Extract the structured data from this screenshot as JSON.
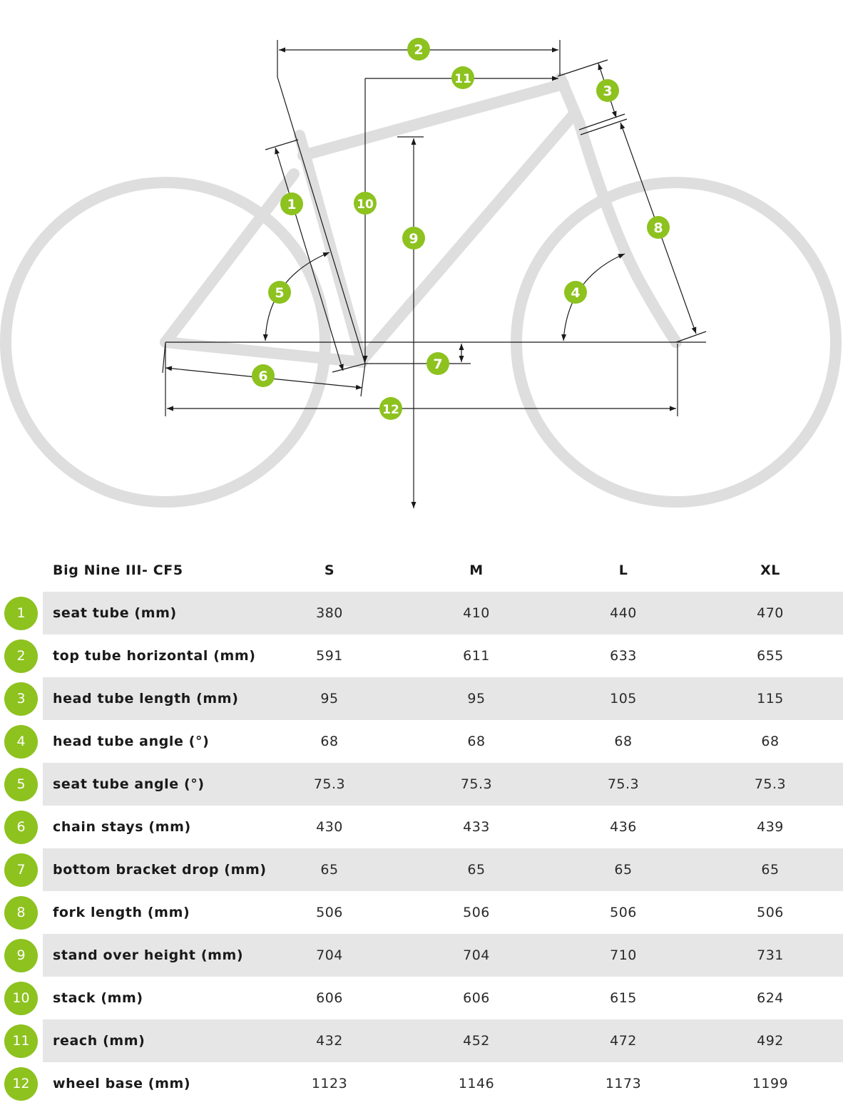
{
  "diagram": {
    "badges": [
      {
        "n": "1"
      },
      {
        "n": "2"
      },
      {
        "n": "3"
      },
      {
        "n": "4"
      },
      {
        "n": "5"
      },
      {
        "n": "6"
      },
      {
        "n": "7"
      },
      {
        "n": "8"
      },
      {
        "n": "9"
      },
      {
        "n": "10"
      },
      {
        "n": "11"
      },
      {
        "n": "12"
      }
    ]
  },
  "table": {
    "model": "Big Nine III- CF5",
    "sizes": [
      "S",
      "M",
      "L",
      "XL"
    ],
    "rows": [
      {
        "num": "1",
        "label": "seat tube (mm)",
        "values": [
          "380",
          "410",
          "440",
          "470"
        ]
      },
      {
        "num": "2",
        "label": "top tube horizontal (mm)",
        "values": [
          "591",
          "611",
          "633",
          "655"
        ]
      },
      {
        "num": "3",
        "label": "head tube length (mm)",
        "values": [
          "95",
          "95",
          "105",
          "115"
        ]
      },
      {
        "num": "4",
        "label": "head tube angle (°)",
        "values": [
          "68",
          "68",
          "68",
          "68"
        ]
      },
      {
        "num": "5",
        "label": "seat tube angle (°)",
        "values": [
          "75.3",
          "75.3",
          "75.3",
          "75.3"
        ]
      },
      {
        "num": "6",
        "label": "chain stays (mm)",
        "values": [
          "430",
          "433",
          "436",
          "439"
        ]
      },
      {
        "num": "7",
        "label": "bottom bracket drop (mm)",
        "values": [
          "65",
          "65",
          "65",
          "65"
        ]
      },
      {
        "num": "8",
        "label": "fork length (mm)",
        "values": [
          "506",
          "506",
          "506",
          "506"
        ]
      },
      {
        "num": "9",
        "label": "stand over height (mm)",
        "values": [
          "704",
          "704",
          "710",
          "731"
        ]
      },
      {
        "num": "10",
        "label": "stack (mm)",
        "values": [
          "606",
          "606",
          "615",
          "624"
        ]
      },
      {
        "num": "11",
        "label": "reach (mm)",
        "values": [
          "432",
          "452",
          "472",
          "492"
        ]
      },
      {
        "num": "12",
        "label": "wheel base (mm)",
        "values": [
          "1123",
          "1146",
          "1173",
          "1199"
        ]
      }
    ]
  },
  "colors": {
    "accent": "#8dc21f",
    "frame": "#dedede",
    "band": "#e6e6e6",
    "line": "#1a1a1a"
  }
}
